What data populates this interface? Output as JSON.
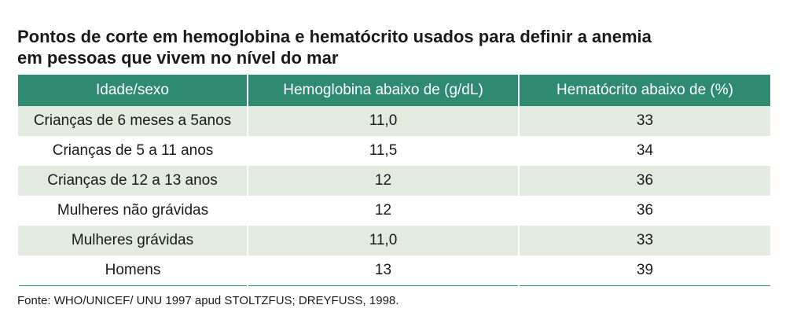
{
  "title": {
    "line1": "Pontos de corte em hemoglobina e hematócrito usados para definir a anemia",
    "line2": "em pessoas que vivem no nível do mar"
  },
  "table": {
    "headers": [
      "Idade/sexo",
      "Hemoglobina abaixo de (g/dL)",
      "Hematócrito abaixo de (%)"
    ],
    "rows": [
      [
        "Crianças de 6 meses a 5anos",
        "11,0",
        "33"
      ],
      [
        "Crianças de 5 a 11 anos",
        "11,5",
        "34"
      ],
      [
        "Crianças de 12 a 13 anos",
        "12",
        "36"
      ],
      [
        "Mulheres não grávidas",
        "12",
        "36"
      ],
      [
        "Mulheres grávidas",
        "11,0",
        "33"
      ],
      [
        "Homens",
        "13",
        "39"
      ]
    ]
  },
  "source": "Fonte: WHO/UNICEF/ UNU 1997 apud STOLTZFUS; DREYFUSS, 1998.",
  "colors": {
    "header_bg": "#2e8b72",
    "stripe_bg": "#e3ebe1"
  }
}
